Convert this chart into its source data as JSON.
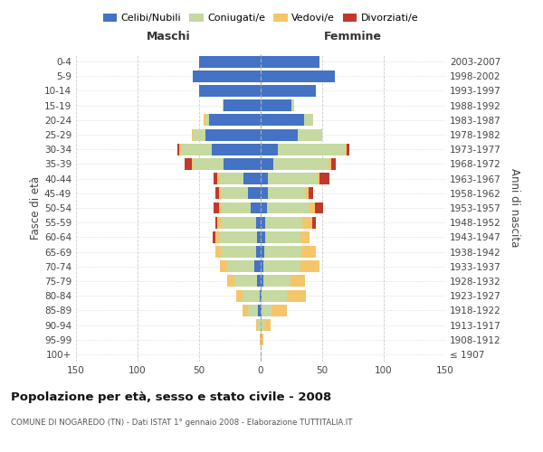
{
  "age_groups": [
    "100+",
    "95-99",
    "90-94",
    "85-89",
    "80-84",
    "75-79",
    "70-74",
    "65-69",
    "60-64",
    "55-59",
    "50-54",
    "45-49",
    "40-44",
    "35-39",
    "30-34",
    "25-29",
    "20-24",
    "15-19",
    "10-14",
    "5-9",
    "0-4"
  ],
  "birth_years": [
    "≤ 1907",
    "1908-1912",
    "1913-1917",
    "1918-1922",
    "1923-1927",
    "1928-1932",
    "1933-1937",
    "1938-1942",
    "1943-1947",
    "1948-1952",
    "1953-1957",
    "1958-1962",
    "1963-1967",
    "1968-1972",
    "1973-1977",
    "1978-1982",
    "1983-1987",
    "1988-1992",
    "1993-1997",
    "1998-2002",
    "2003-2007"
  ],
  "male": {
    "celibi": [
      0,
      0,
      0,
      2,
      1,
      3,
      5,
      4,
      3,
      4,
      8,
      10,
      14,
      30,
      40,
      45,
      42,
      30,
      50,
      55,
      50
    ],
    "coniugati": [
      0,
      0,
      2,
      8,
      14,
      18,
      22,
      28,
      30,
      28,
      24,
      22,
      20,
      25,
      25,
      10,
      3,
      1,
      0,
      0,
      0
    ],
    "vedovi": [
      0,
      1,
      2,
      5,
      5,
      6,
      6,
      5,
      4,
      3,
      2,
      2,
      1,
      1,
      1,
      1,
      1,
      0,
      0,
      0,
      0
    ],
    "divorziati": [
      0,
      0,
      0,
      0,
      0,
      0,
      0,
      0,
      2,
      2,
      4,
      3,
      3,
      6,
      2,
      0,
      0,
      0,
      0,
      0,
      0
    ]
  },
  "female": {
    "nubili": [
      0,
      0,
      0,
      1,
      1,
      2,
      2,
      3,
      4,
      4,
      5,
      6,
      6,
      10,
      14,
      30,
      35,
      25,
      45,
      60,
      48
    ],
    "coniugate": [
      0,
      0,
      3,
      8,
      20,
      22,
      30,
      30,
      28,
      30,
      35,
      30,
      40,
      45,
      55,
      20,
      8,
      2,
      0,
      0,
      0
    ],
    "vedove": [
      0,
      2,
      5,
      12,
      16,
      12,
      16,
      12,
      8,
      8,
      4,
      3,
      2,
      2,
      1,
      0,
      0,
      0,
      0,
      0,
      0
    ],
    "divorziate": [
      0,
      0,
      0,
      0,
      0,
      0,
      0,
      0,
      0,
      3,
      7,
      4,
      8,
      4,
      2,
      0,
      0,
      0,
      0,
      0,
      0
    ]
  },
  "colors": {
    "celibi": "#4472C4",
    "coniugati": "#C5D9A0",
    "vedovi": "#F5C56A",
    "divorziati": "#C0392B"
  },
  "xlim": 150,
  "title": "Popolazione per età, sesso e stato civile - 2008",
  "subtitle": "COMUNE DI NOGAREDO (TN) - Dati ISTAT 1° gennaio 2008 - Elaborazione TUTTITALIA.IT",
  "ylabel_left": "Fasce di età",
  "ylabel_right": "Anni di nascita",
  "xlabel_left": "Maschi",
  "xlabel_right": "Femmine",
  "background_color": "#ffffff",
  "grid_color": "#cccccc"
}
